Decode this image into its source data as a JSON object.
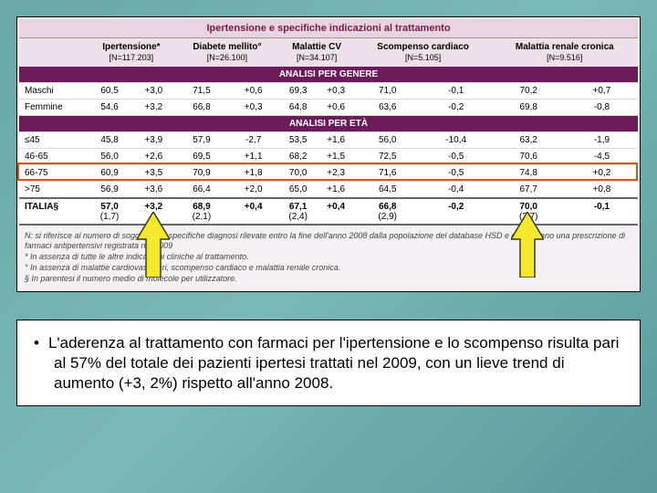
{
  "title": "Ipertensione e specifiche indicazioni al trattamento",
  "columns": [
    {
      "h1": "Ipertensione*",
      "h2": "[N=117.203]"
    },
    {
      "h1": "Diabete mellito°",
      "h2": "[N=26.100]"
    },
    {
      "h1": "Malattie CV",
      "h2": "[N=34.107]"
    },
    {
      "h1": "Scompenso cardiaco",
      "h2": "[N=5.105]"
    },
    {
      "h1": "Malattia renale cronica",
      "h2": "[N=9.516]"
    }
  ],
  "section1": "ANALISI PER GENERE",
  "genere": [
    {
      "label": "Maschi",
      "v": [
        "60,5",
        "+3,0",
        "71,5",
        "+0,6",
        "69,3",
        "+0,3",
        "71,0",
        "-0,1",
        "70,2",
        "+0,7"
      ]
    },
    {
      "label": "Femmine",
      "v": [
        "54,6",
        "+3,2",
        "66,8",
        "+0,3",
        "64,8",
        "+0,6",
        "63,6",
        "-0,2",
        "69,8",
        "-0,8"
      ]
    }
  ],
  "section2": "ANALISI PER ETÀ",
  "eta": [
    {
      "label": "≤45",
      "v": [
        "45,8",
        "+3,9",
        "57,9",
        "-2,7",
        "53,5",
        "+1,6",
        "56,0",
        "-10,4",
        "63,2",
        "-1,9"
      ]
    },
    {
      "label": "46-65",
      "v": [
        "56,0",
        "+2,6",
        "69,5",
        "+1,1",
        "68,2",
        "+1,5",
        "72,5",
        "-0,5",
        "70,6",
        "-4,5"
      ]
    },
    {
      "label": "66-75",
      "v": [
        "60,9",
        "+3,5",
        "70,9",
        "+1,8",
        "70,0",
        "+2,3",
        "71,6",
        "-0,5",
        "74,8",
        "+0,2"
      ]
    },
    {
      "label": ">75",
      "v": [
        "56,9",
        "+3,6",
        "66,4",
        "+2,0",
        "65,0",
        "+1,6",
        "64,5",
        "-0,4",
        "67,7",
        "+0,8"
      ]
    }
  ],
  "italia": {
    "label": "ITALIA§",
    "v": [
      "57,0",
      "+3,2",
      "68,9",
      "+0,4",
      "67,1",
      "+0,4",
      "66,8",
      "-0,2",
      "70,0",
      "-0,1"
    ],
    "paren": [
      "(1,7)",
      "(2,1)",
      "(2,4)",
      "(2,9)",
      "(2,7)"
    ]
  },
  "footnotes": [
    "N: si riferisce al numero di soggetti con specifiche diagnosi rilevate entro la fine dell'anno 2008 dalla popolazione del database HSD e con almeno una prescrizione di farmaci antipertensivi registrata nel 2009",
    "* In assenza di tutte le altre indicazioni cliniche al trattamento.",
    "° In assenza di malattie cardiovascolari, scompenso cardiaco e malattia renale cronica.",
    "§ In parentesi il numero medio di molecole per utilizzatore."
  ],
  "bullet": "L'aderenza al trattamento con farmaci per l'ipertensione e lo scompenso risulta pari al 57% del totale dei pazienti ipertesi trattati nel 2009, con un lieve trend di aumento (+3, 2%) rispetto all'anno 2008.",
  "colors": {
    "section_bg": "#6b1a5a",
    "header_bg": "#ede0ea",
    "highlight": "#d9531e",
    "arrow_fill": "#f5e92e",
    "arrow_stroke": "#3a3a1a"
  }
}
